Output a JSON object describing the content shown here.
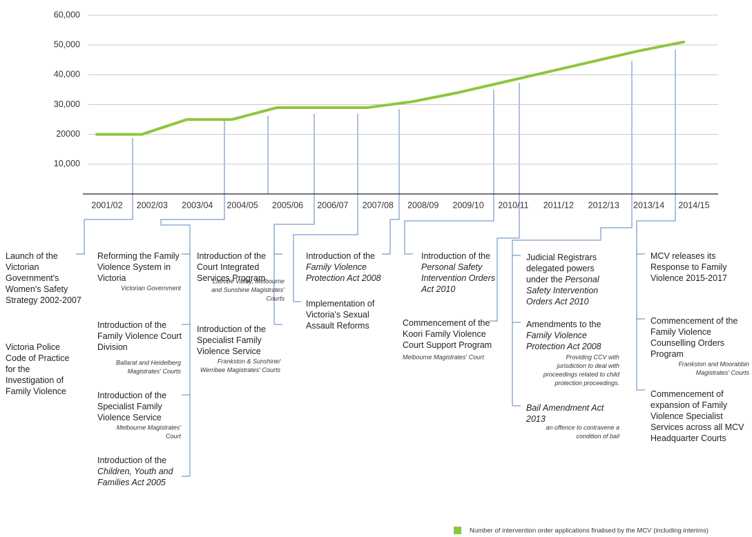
{
  "chart_data": {
    "type": "line",
    "categories": [
      "2001/02",
      "2002/03",
      "2003/04",
      "2004/05",
      "2005/06",
      "2006/07",
      "2007/08",
      "2008/09",
      "2009/10",
      "2010/11",
      "2011/12",
      "2012/13",
      "2013/14",
      "2014/15"
    ],
    "series": [
      {
        "name": "Number of intervention order applications finalised by the MCV (including interims)",
        "color": "#8dc63f",
        "values": [
          20000,
          20000,
          25000,
          25000,
          29000,
          29000,
          29000,
          31000,
          34000,
          37500,
          41000,
          44500,
          48000,
          51000
        ]
      }
    ],
    "ylim": [
      0,
      60000
    ],
    "yticks": [
      {
        "value": 10000,
        "label": "10,000"
      },
      20000,
      {
        "value": 30000,
        "label": "30,000"
      },
      {
        "value": 40000,
        "label": "40,000"
      },
      {
        "value": 50000,
        "label": "50,000"
      },
      {
        "value": 60000,
        "label": "60,000"
      }
    ],
    "grid": true,
    "legend": "bottom-right"
  },
  "annotations": [
    {
      "lines": [
        "Launch of the",
        "Victorian",
        "Government's",
        "Women's Safety",
        "Strategy 2002-2007"
      ]
    },
    {
      "lines": [
        "Victoria Police",
        "Code of Practice",
        "for the",
        "Investigation of",
        "Family Violence"
      ]
    },
    {
      "lines": [
        "Reforming the Family",
        "Violence System in",
        "Victoria"
      ],
      "note": [
        "Victorian Government"
      ]
    },
    {
      "lines": [
        "Introduction of the",
        "Family Violence Court",
        "Division"
      ],
      "note": [
        "Ballarat and Heidelberg",
        "Magistrates' Courts"
      ]
    },
    {
      "lines": [
        "Introduction of the",
        "Specialist Family",
        "Violence Service"
      ],
      "note": [
        "Melbourne Magistrates'",
        "Court"
      ]
    },
    {
      "lines": [
        "Introduction of the",
        {
          "italic": "Children, Youth and"
        },
        {
          "italic": "Families Act 2005"
        }
      ]
    },
    {
      "lines": [
        "Introduction of the",
        "Court Integrated",
        "Services Program"
      ],
      "note": [
        "Latrobe Valley, Melbourne",
        "and Sunshine Magistrates'",
        "Courts"
      ]
    },
    {
      "lines": [
        "Introduction of the",
        "Specialist Family",
        "Violence Service"
      ],
      "note": [
        "Frankston & Sunshine/",
        "Werribee Magistrates' Courts"
      ]
    },
    {
      "lines": [
        "Introduction of the",
        {
          "italic": "Family Violence"
        },
        {
          "italic": "Protection Act 2008"
        }
      ]
    },
    {
      "lines": [
        "Implementation of",
        "Victoria's Sexual",
        "Assault Reforms"
      ]
    },
    {
      "lines": [
        "Introduction of the",
        {
          "italic": "Personal Safety"
        },
        {
          "italic": "Intervention Orders"
        },
        {
          "italic": "Act 2010"
        }
      ]
    },
    {
      "lines": [
        "Commencement of the",
        "Koori Family Violence",
        "Court Support Program"
      ],
      "note": [
        "Melbourne Magistrates' Court"
      ]
    },
    {
      "lines": [
        "Judicial Registrars",
        "delegated powers",
        [
          "under the ",
          {
            "italic": "Personal"
          }
        ],
        {
          "italic": "Safety Intervention"
        },
        {
          "italic": "Orders Act 2010"
        }
      ]
    },
    {
      "lines": [
        "Amendments to the",
        {
          "italic": "Family Violence"
        },
        {
          "italic": "Protection Act 2008"
        }
      ],
      "note": [
        "Providing CCV with",
        "jurisdiction to deal with",
        "proceedings related to child",
        "protection proceedings."
      ]
    },
    {
      "lines": [
        {
          "italic": "Bail Amendment Act"
        },
        {
          "italic": "2013"
        }
      ],
      "note": [
        "an offence to contravene a",
        "condition of bail"
      ]
    },
    {
      "lines": [
        "MCV releases its",
        "Response to Family",
        "Violence 2015-2017"
      ]
    },
    {
      "lines": [
        "Commencement of the",
        "Family Violence",
        "Counselling Orders",
        "Program"
      ],
      "note": [
        "Frankston and Moorabbin",
        "Magistrates' Courts"
      ]
    },
    {
      "lines": [
        "Commencement of",
        "expansion of Family",
        "Violence Specialist",
        "Services across all MCV",
        "Headquarter Courts"
      ]
    }
  ]
}
